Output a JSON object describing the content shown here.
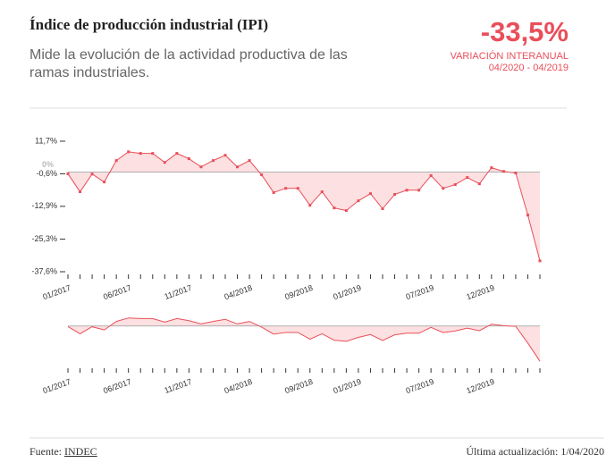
{
  "header": {
    "title": "Índice de producción industrial (IPI)",
    "subtitle": "Mide la evolución de la actividad productiva de las ramas industriales.",
    "headline_value": "-33,5%",
    "headline_caption": "VARIACIÓN INTERANUAL 04/2020 - 04/2019"
  },
  "chart_data": {
    "type": "area",
    "categories": [
      "01/2017",
      null,
      null,
      null,
      null,
      "06/2017",
      null,
      null,
      null,
      null,
      "11/2017",
      null,
      null,
      null,
      null,
      "04/2018",
      null,
      null,
      null,
      null,
      "09/2018",
      null,
      null,
      null,
      "01/2019",
      null,
      null,
      null,
      null,
      null,
      "07/2019",
      null,
      null,
      null,
      null,
      "12/2019",
      null,
      null,
      null,
      null
    ],
    "series": [
      {
        "name": "IPI",
        "color": "#e94f5a",
        "values": [
          -0.6,
          -7.4,
          -0.7,
          -3.7,
          4.4,
          7.7,
          7.1,
          7.1,
          3.7,
          7.1,
          5.1,
          2.0,
          4.4,
          6.4,
          2.0,
          4.4,
          -1.0,
          -7.7,
          -6.1,
          -6.1,
          -12.5,
          -7.4,
          -13.5,
          -14.5,
          -10.8,
          -8.1,
          -13.8,
          -8.4,
          -6.8,
          -6.8,
          -1.3,
          -6.1,
          -4.7,
          -2.0,
          -4.4,
          1.7,
          0.3,
          -0.3,
          -16.2,
          -33.5
        ]
      }
    ],
    "fill": "#fde0e1",
    "ylim": [
      -37.6,
      11.7
    ],
    "yticks": [
      {
        "value": 11.7,
        "label": "11,7%"
      },
      {
        "value": -0.6,
        "label": "-0,6%"
      },
      {
        "value": -12.9,
        "label": "-12,9%"
      },
      {
        "value": -25.3,
        "label": "-25,3%"
      },
      {
        "value": -37.6,
        "label": "-37,6%"
      }
    ],
    "zero_label": "0%"
  },
  "footer": {
    "source_label": "Fuente:",
    "source": "INDEC",
    "updated": "Última actualización: 1/04/2020"
  }
}
